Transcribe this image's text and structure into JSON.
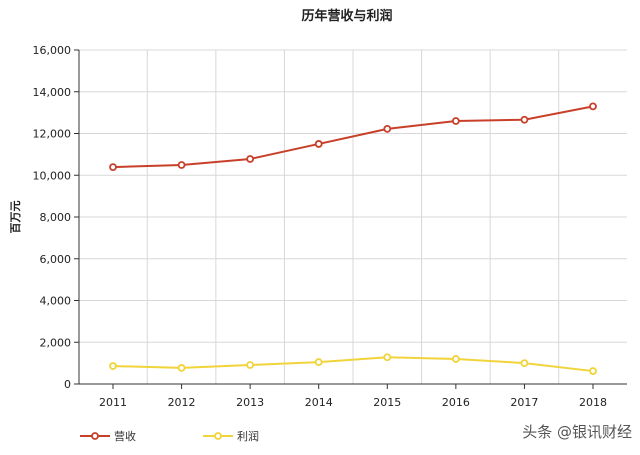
{
  "chart_data": {
    "type": "line",
    "title": "历年营收与利润",
    "xlabel": "",
    "ylabel": "百万元",
    "categories": [
      "2011",
      "2012",
      "2013",
      "2014",
      "2015",
      "2016",
      "2017",
      "2018"
    ],
    "ylim": [
      0,
      16000
    ],
    "yticks": [
      "0",
      "2,000",
      "4,000",
      "6,000",
      "8,000",
      "10,000",
      "12,000",
      "14,000",
      "16,000"
    ],
    "grid": true,
    "legend_position": "bottom-left",
    "series": [
      {
        "name": "营收",
        "color": "#c8402a",
        "values": [
          10390,
          10490,
          10780,
          11500,
          12220,
          12600,
          12660,
          13300
        ]
      },
      {
        "name": "利润",
        "color": "#f0d43a",
        "values": [
          860,
          770,
          910,
          1050,
          1280,
          1200,
          1000,
          620
        ]
      }
    ]
  },
  "watermark": "头条 @银讯财经"
}
